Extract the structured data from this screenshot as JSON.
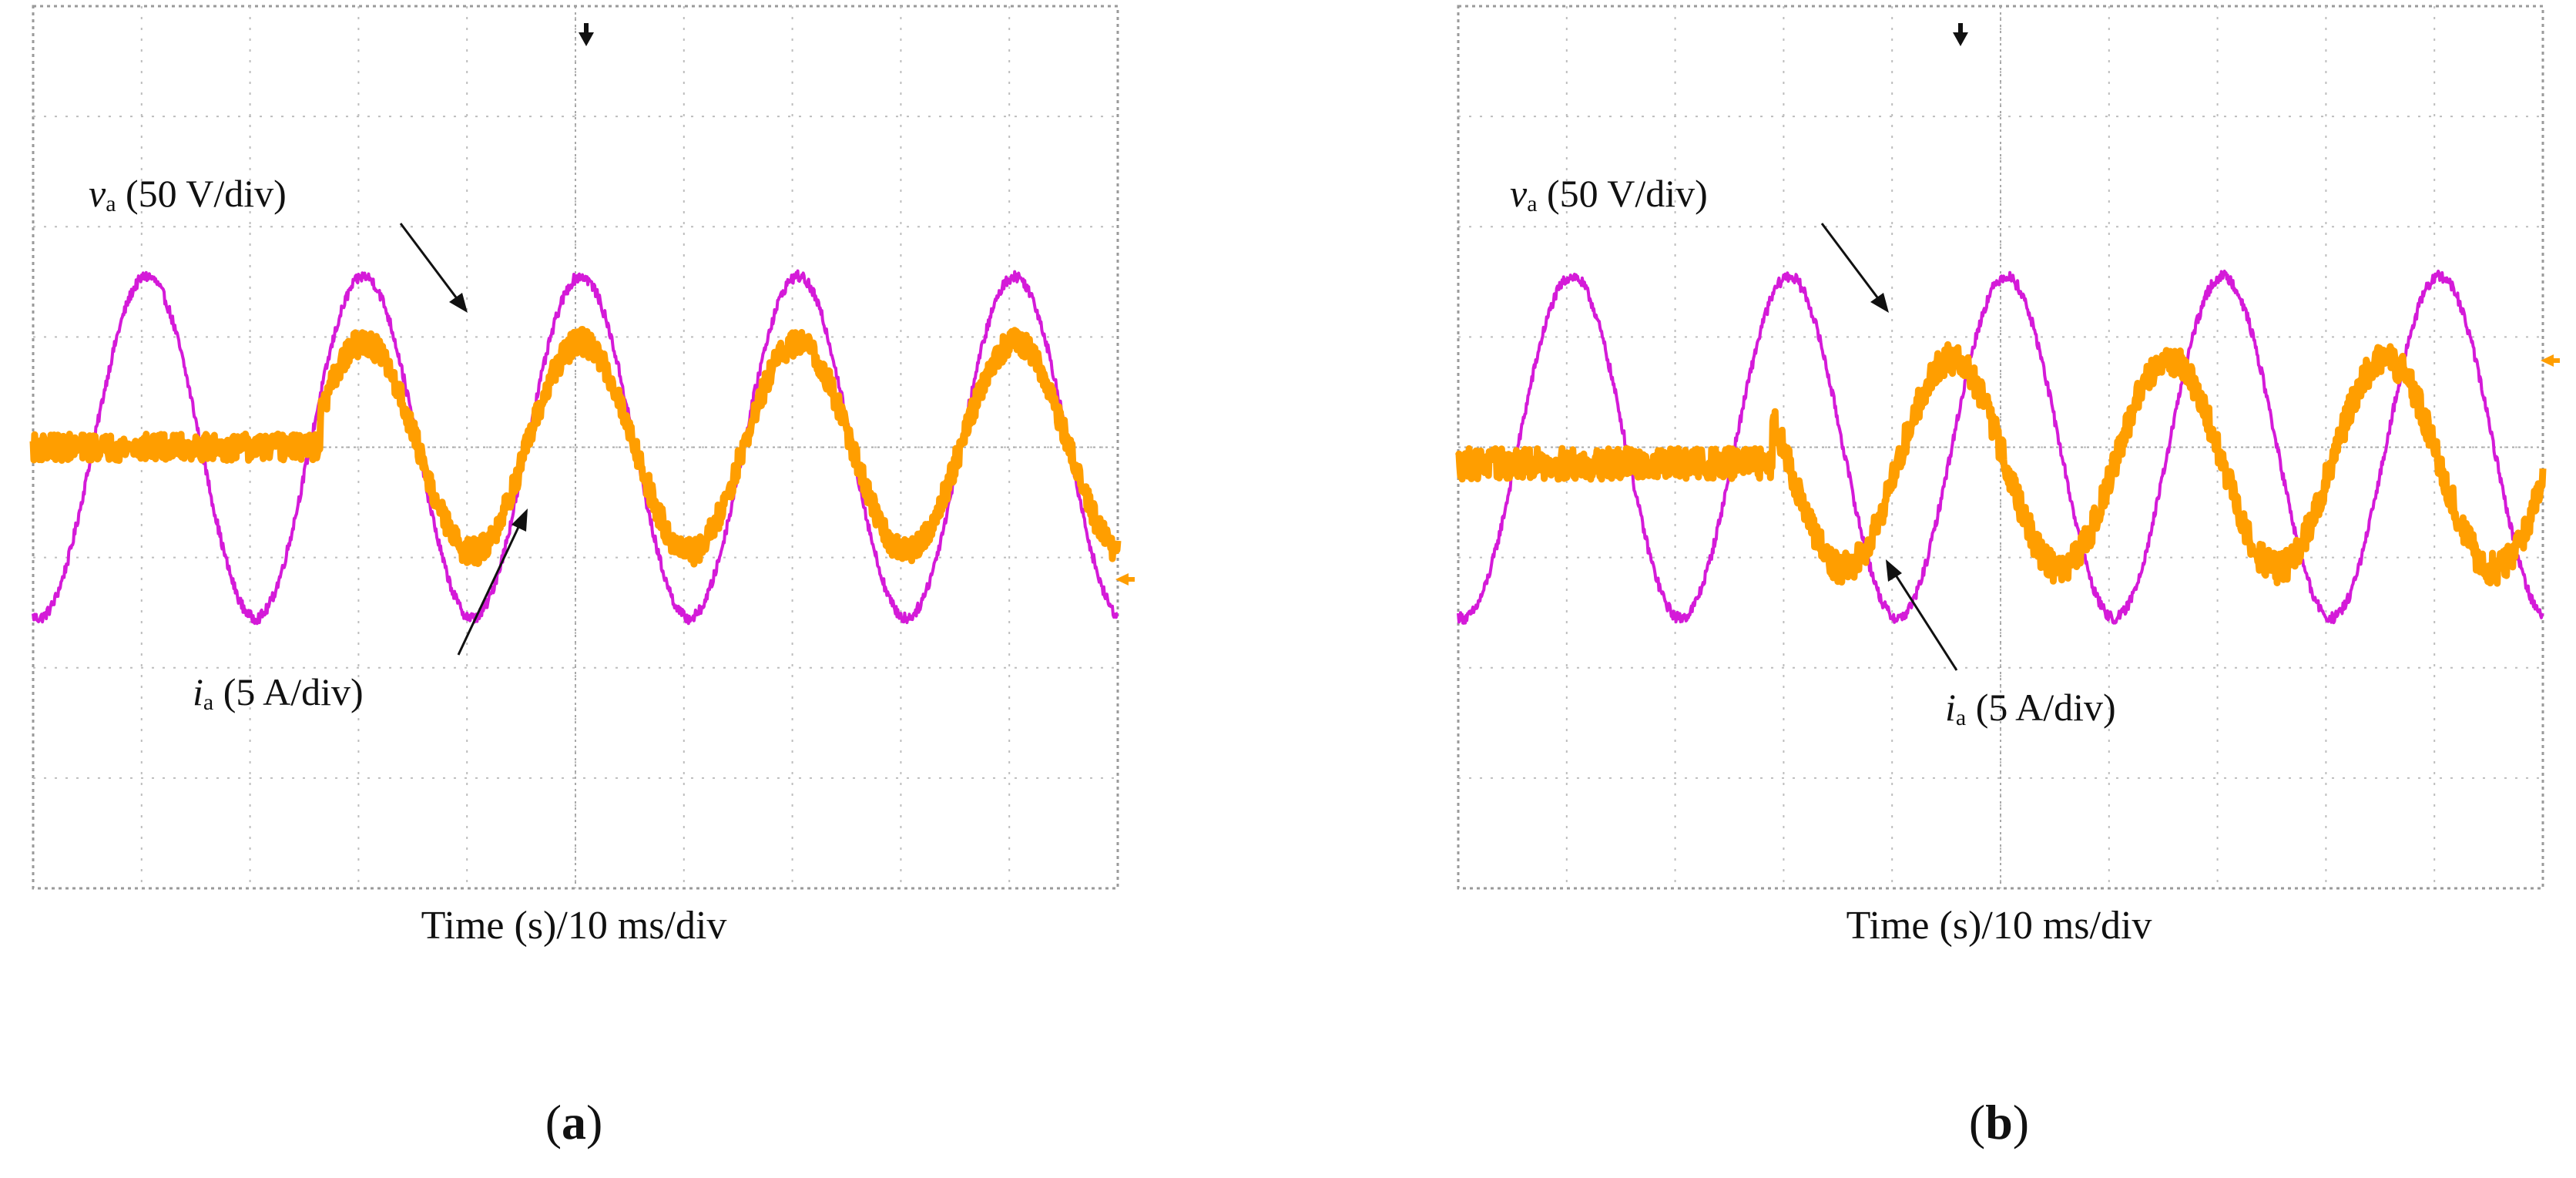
{
  "panels": [
    {
      "id": "a",
      "caption_open": "(",
      "caption_letter": "a",
      "caption_close": ")",
      "xlabel": "Time (s)/10 ms/div",
      "voltage_label_main": "v",
      "voltage_label_sub": "a",
      "voltage_label_rest": " (50 V/div)",
      "current_label_main": "i",
      "current_label_sub": "a",
      "current_label_rest": " (5 A/div)"
    },
    {
      "id": "b",
      "caption_open": "(",
      "caption_letter": "b",
      "caption_close": ")",
      "xlabel": "Time (s)/10 ms/div",
      "voltage_label_main": "v",
      "voltage_label_sub": "a",
      "voltage_label_rest": " (50 V/div)",
      "current_label_main": "i",
      "current_label_sub": "a",
      "current_label_rest": " (5 A/div)"
    }
  ],
  "chart_data": [
    {
      "type": "line",
      "title": "",
      "xlabel": "Time (s)/10 ms/div",
      "ylabel": "",
      "x_divisions": 10,
      "y_divisions": 8,
      "xlim_div": [
        0,
        10
      ],
      "ylim_div": [
        -4,
        4
      ],
      "grid": true,
      "series": [
        {
          "name": "va (50 V/div)",
          "color": "#d41ad8",
          "amplitude_div": 1.55,
          "period_div": 2.0,
          "phase_div": 0.55,
          "offset_div": 0.0,
          "start_div": 0.0,
          "noise_div": 0.05
        },
        {
          "name": "ia (5 A/div)",
          "color": "#ff9e00",
          "amplitude_div": 0.95,
          "period_div": 2.0,
          "phase_div": 0.55,
          "offset_div": 0.0,
          "start_div": 2.65,
          "noise_div": 0.12
        }
      ]
    },
    {
      "type": "line",
      "title": "",
      "xlabel": "Time (s)/10 ms/div",
      "ylabel": "",
      "x_divisions": 10,
      "y_divisions": 8,
      "xlim_div": [
        0,
        10
      ],
      "ylim_div": [
        -4,
        4
      ],
      "grid": true,
      "series": [
        {
          "name": "va (50 V/div)",
          "color": "#d41ad8",
          "amplitude_div": 1.55,
          "period_div": 2.0,
          "phase_div": 0.55,
          "offset_div": 0.0,
          "start_div": 0.0,
          "noise_div": 0.05
        },
        {
          "name": "ia (5 A/div)",
          "color": "#ff9e00",
          "amplitude_div": 0.95,
          "period_div": 2.0,
          "phase_div": 0.05,
          "offset_div": -0.15,
          "start_div": 2.9,
          "noise_div": 0.14
        }
      ]
    }
  ]
}
